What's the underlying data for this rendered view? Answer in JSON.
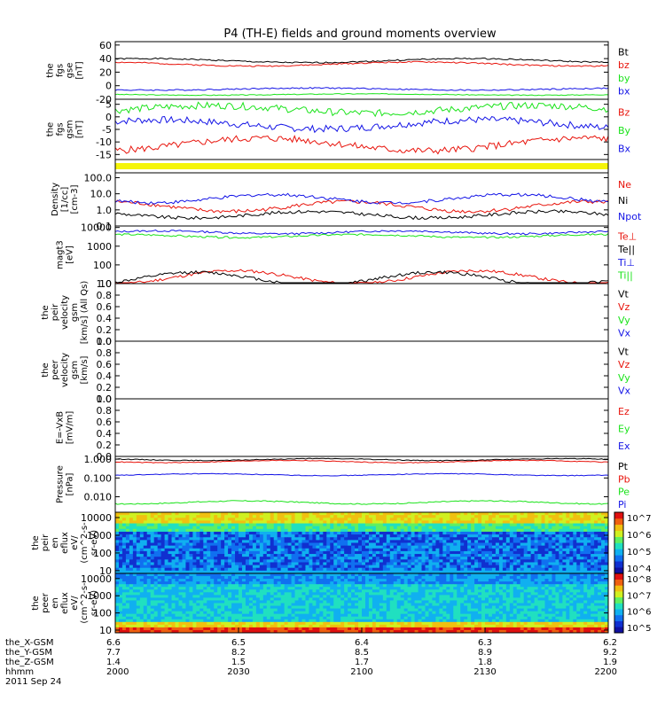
{
  "title": "P4 (TH-E) fields and ground moments overview",
  "colors": {
    "black": "#000000",
    "red": "#e8140c",
    "green": "#1ae31a",
    "blue": "#1414e6",
    "yellow": "#f5f50a",
    "frame": "#000000"
  },
  "chart_data": [
    {
      "type": "line",
      "panel": "fgs-gse",
      "ylabel": [
        "the",
        "fgs",
        "gse",
        "[nT]"
      ],
      "ylim": [
        -20,
        65
      ],
      "ticks": [
        "60",
        "40",
        "20",
        "0",
        "-20"
      ],
      "tick_values": [
        60,
        40,
        20,
        0,
        -20
      ],
      "series": [
        {
          "name": "Bt",
          "color": "black",
          "base": 37,
          "amp": 3,
          "noise": 1.0,
          "seed": 1
        },
        {
          "name": "bz",
          "color": "red",
          "base": 32,
          "amp": 3,
          "noise": 1.0,
          "seed": 2
        },
        {
          "name": "by",
          "color": "green",
          "base": -13,
          "amp": 1,
          "noise": 0.6,
          "seed": 3
        },
        {
          "name": "bx",
          "color": "blue",
          "base": -5,
          "amp": 1.5,
          "noise": 1.0,
          "seed": 4
        }
      ]
    },
    {
      "type": "line",
      "panel": "fgs-gsm",
      "ylabel": [
        "the",
        "fgs",
        "gsm",
        "[nT]"
      ],
      "ylim": [
        -17,
        7
      ],
      "ticks": [
        "5",
        "0",
        "-5",
        "-10",
        "-15"
      ],
      "tick_values": [
        5,
        0,
        -5,
        -10,
        -15
      ],
      "series": [
        {
          "name": "Bz",
          "color": "red",
          "base": -11,
          "amp": 2.5,
          "noise": 1.4,
          "seed": 5
        },
        {
          "name": "By",
          "color": "green",
          "base": 3,
          "amp": 1.5,
          "noise": 1.4,
          "seed": 6
        },
        {
          "name": "Bx",
          "color": "blue",
          "base": -3,
          "amp": 1.8,
          "noise": 1.4,
          "seed": 7
        }
      ]
    },
    {
      "type": "band",
      "panel": "yellow-strip",
      "ylabel": [],
      "ticks": [],
      "series": []
    },
    {
      "type": "line",
      "panel": "density",
      "scale": "log",
      "ylabel": [
        "Density",
        "[1/cc]",
        "[cm-3]"
      ],
      "ylim": [
        0.1,
        200
      ],
      "ticks": [
        "100.0",
        "10.0",
        "1.0",
        "0.1"
      ],
      "tick_values": [
        100,
        10,
        1,
        0.1
      ],
      "series": [
        {
          "name": "Ne",
          "color": "red",
          "base": 1.6,
          "amp": 0.3,
          "noise": 0.12,
          "seed": 8
        },
        {
          "name": "Ni",
          "color": "black",
          "base": 0.5,
          "amp": 0.2,
          "noise": 0.1,
          "seed": 9
        },
        {
          "name": "Npot",
          "color": "blue",
          "base": 5.0,
          "amp": 0.25,
          "noise": 0.1,
          "seed": 10
        }
      ]
    },
    {
      "type": "line",
      "panel": "temperature",
      "scale": "log",
      "ylabel": [
        "magt3",
        "[eV]"
      ],
      "ylim": [
        10,
        12000
      ],
      "ticks": [
        "10000",
        "1000",
        "100",
        "10"
      ],
      "tick_values": [
        10000,
        1000,
        100,
        10
      ],
      "series": [
        {
          "name": "Te⊥",
          "color": "red",
          "base": 22,
          "amp": 0.35,
          "noise": 0.08,
          "seed": 11
        },
        {
          "name": "Te||",
          "color": "black",
          "base": 18,
          "amp": 0.35,
          "noise": 0.08,
          "seed": 12
        },
        {
          "name": "Ti⊥",
          "color": "blue",
          "base": 5500,
          "amp": 0.08,
          "noise": 0.05,
          "seed": 13
        },
        {
          "name": "Ti||",
          "color": "green",
          "base": 3500,
          "amp": 0.08,
          "noise": 0.05,
          "seed": 14
        }
      ]
    },
    {
      "type": "line",
      "panel": "peir-velocity",
      "ylabel": [
        "the",
        "peir",
        "velocity",
        "gsm",
        "[km/s] (All Qs)"
      ],
      "ylim": [
        0,
        1
      ],
      "ticks": [
        "1.0",
        "0.8",
        "0.6",
        "0.4",
        "0.2",
        "0.0"
      ],
      "tick_values": [
        1,
        0.8,
        0.6,
        0.4,
        0.2,
        0
      ],
      "series": [
        {
          "name": "Vt",
          "color": "black"
        },
        {
          "name": "Vz",
          "color": "red"
        },
        {
          "name": "Vy",
          "color": "green"
        },
        {
          "name": "Vx",
          "color": "blue"
        }
      ]
    },
    {
      "type": "line",
      "panel": "peer-velocity",
      "ylabel": [
        "the",
        "peer",
        "velocity",
        "gsm",
        "[km/s]"
      ],
      "ylim": [
        0,
        1
      ],
      "ticks": [
        "1.0",
        "0.8",
        "0.6",
        "0.4",
        "0.2",
        "0.0"
      ],
      "tick_values": [
        1,
        0.8,
        0.6,
        0.4,
        0.2,
        0
      ],
      "series": [
        {
          "name": "Vt",
          "color": "black"
        },
        {
          "name": "Vz",
          "color": "red"
        },
        {
          "name": "Vy",
          "color": "green"
        },
        {
          "name": "Vx",
          "color": "blue"
        }
      ]
    },
    {
      "type": "line",
      "panel": "e-field",
      "ylabel": [
        "E=-VxB",
        "[mV/m]"
      ],
      "ylim": [
        0,
        1
      ],
      "ticks": [
        "1.0",
        "0.8",
        "0.6",
        "0.4",
        "0.2",
        "0.0"
      ],
      "tick_values": [
        1,
        0.8,
        0.6,
        0.4,
        0.2,
        0
      ],
      "series": [
        {
          "name": "Ez",
          "color": "red"
        },
        {
          "name": "Ey",
          "color": "green"
        },
        {
          "name": "Ex",
          "color": "blue"
        }
      ]
    },
    {
      "type": "line",
      "panel": "pressure",
      "scale": "log",
      "ylabel": [
        "Pressure",
        "[nPa]"
      ],
      "ylim": [
        0.0015,
        1.4
      ],
      "ticks": [
        "1.000",
        "0.100",
        "0.010",
        "0.001"
      ],
      "tick_values": [
        1,
        0.1,
        0.01,
        0.001
      ],
      "series": [
        {
          "name": "Pt",
          "color": "black",
          "base": 0.95,
          "amp": 0.05,
          "noise": 0.02,
          "seed": 15
        },
        {
          "name": "Pb",
          "color": "red",
          "base": 0.75,
          "amp": 0.06,
          "noise": 0.02,
          "seed": 16
        },
        {
          "name": "Pe",
          "color": "green",
          "base": 0.005,
          "amp": 0.08,
          "noise": 0.03,
          "seed": 17
        },
        {
          "name": "Pi",
          "color": "blue",
          "base": 0.15,
          "amp": 0.05,
          "noise": 0.02,
          "seed": 18
        }
      ]
    },
    {
      "type": "heatmap",
      "panel": "peir-eflux",
      "scale": "log",
      "ylabel": [
        "the",
        "peir",
        "en",
        "eflux",
        "eV/",
        "(cm^2-s-",
        "sr-eV)"
      ],
      "ylim": [
        7,
        20000
      ],
      "ticks": [
        "10000",
        "1000",
        "100",
        "10"
      ],
      "tick_values": [
        10000,
        1000,
        100,
        10
      ],
      "colorbar": {
        "labels": [
          "10^7",
          "10^6",
          "10^5",
          "10^4"
        ]
      },
      "seed": 19
    },
    {
      "type": "heatmap",
      "panel": "peer-eflux",
      "scale": "log",
      "ylabel": [
        "the",
        "peer",
        "en",
        "eflux",
        "eV/",
        "(cm^2-s-",
        "sr-eV)"
      ],
      "ylim": [
        7,
        20000
      ],
      "ticks": [
        "10000",
        "1000",
        "100",
        "10"
      ],
      "tick_values": [
        10000,
        1000,
        100,
        10
      ],
      "colorbar": {
        "labels": [
          "10^8",
          "10^7",
          "10^6",
          "10^5"
        ]
      },
      "seed": 20
    }
  ],
  "x_axis": {
    "rows": [
      {
        "label": "the_X-GSM",
        "values": [
          "6.6",
          "6.5",
          "6.4",
          "6.3",
          "6.2"
        ]
      },
      {
        "label": "the_Y-GSM",
        "values": [
          "7.7",
          "8.2",
          "8.5",
          "8.9",
          "9.2"
        ]
      },
      {
        "label": "the_Z-GSM",
        "values": [
          "1.4",
          "1.5",
          "1.7",
          "1.8",
          "1.9"
        ]
      },
      {
        "label": "hhmm",
        "values": [
          "2000",
          "2030",
          "2100",
          "2130",
          "2200"
        ]
      }
    ],
    "date": "2011 Sep 24"
  }
}
